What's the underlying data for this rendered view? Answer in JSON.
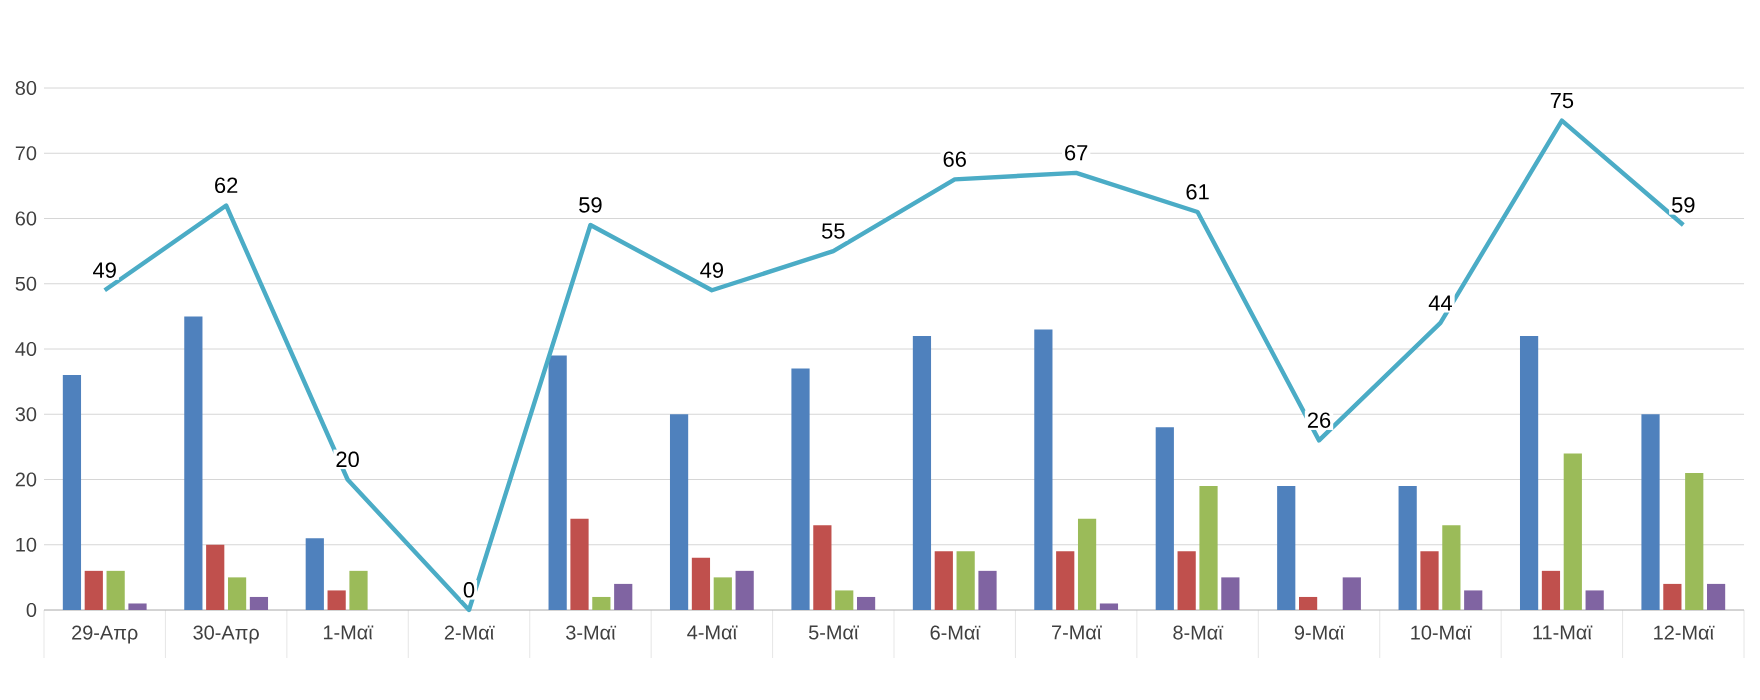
{
  "chart_data": {
    "type": "bar",
    "categories": [
      "29-Απρ",
      "30-Απρ",
      "1-Μαϊ",
      "2-Μαϊ",
      "3-Μαϊ",
      "4-Μαϊ",
      "5-Μαϊ",
      "6-Μαϊ",
      "7-Μαϊ",
      "8-Μαϊ",
      "9-Μαϊ",
      "10-Μαϊ",
      "11-Μαϊ",
      "12-Μαϊ"
    ],
    "series": [
      {
        "color": "#4f81bd",
        "values": [
          36,
          45,
          11,
          0,
          39,
          30,
          37,
          42,
          43,
          28,
          19,
          19,
          42,
          30
        ]
      },
      {
        "color": "#c0504d",
        "values": [
          6,
          10,
          3,
          0,
          14,
          8,
          13,
          9,
          9,
          9,
          2,
          9,
          6,
          4
        ]
      },
      {
        "color": "#9bbb59",
        "values": [
          6,
          5,
          6,
          0,
          2,
          5,
          3,
          9,
          14,
          19,
          0,
          13,
          24,
          21
        ]
      },
      {
        "color": "#8064a2",
        "values": [
          1,
          2,
          0,
          0,
          4,
          6,
          2,
          6,
          1,
          5,
          5,
          3,
          3,
          4
        ]
      },
      {
        "type": "line",
        "color": "#4bacc6",
        "values": [
          49,
          62,
          20,
          0,
          59,
          49,
          55,
          66,
          67,
          61,
          26,
          44,
          75,
          59
        ],
        "value_labels": [
          "49",
          "62",
          "20",
          "0",
          "59",
          "49",
          "55",
          "66",
          "67",
          "61",
          "26",
          "44",
          "75",
          "59"
        ]
      }
    ],
    "ylim": [
      0,
      80
    ],
    "yticks": [
      0,
      10,
      20,
      30,
      40,
      50,
      60,
      70,
      80
    ],
    "grid": "y"
  }
}
